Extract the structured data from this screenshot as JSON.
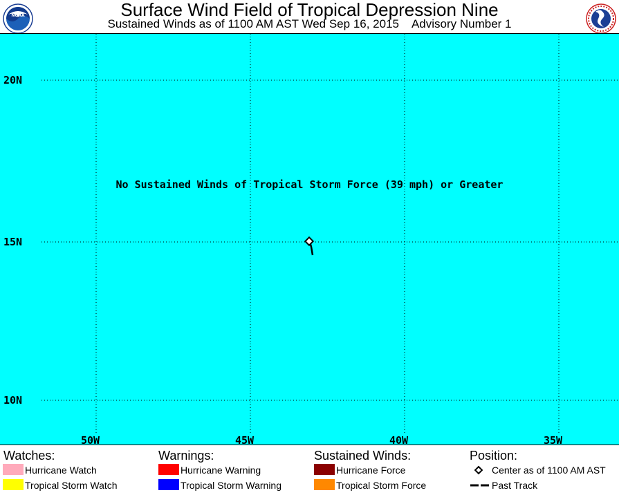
{
  "header": {
    "title": "Surface Wind Field of Tropical Depression Nine",
    "subtitle": "Sustained Winds as of 1100 AM AST Wed Sep 16, 2015    Advisory Number 1",
    "left_logo": "noaa-logo",
    "right_logo": "national-weather-service-logo"
  },
  "map": {
    "background_color": "#00ffff",
    "notice": "No Sustained Winds of Tropical Storm Force (39 mph) or Greater",
    "lat_labels": [
      "20N",
      "15N",
      "10N"
    ],
    "lon_labels": [
      "50W",
      "45W",
      "40W",
      "35W"
    ],
    "center_position": {
      "lat": 15.0,
      "lon": 42.3
    },
    "past_track": [
      {
        "lat": 14.6,
        "lon": 42.2
      },
      {
        "lat": 15.0,
        "lon": 42.3
      }
    ]
  },
  "legend": {
    "watches": {
      "heading": "Watches:",
      "items": [
        {
          "label": "Hurricane Watch",
          "color": "#ffaabb"
        },
        {
          "label": "Tropical Storm Watch",
          "color": "#ffff00"
        }
      ]
    },
    "warnings": {
      "heading": "Warnings:",
      "items": [
        {
          "label": "Hurricane Warning",
          "color": "#ff0000"
        },
        {
          "label": "Tropical Storm Warning",
          "color": "#0000ff"
        }
      ]
    },
    "winds": {
      "heading": "Sustained Winds:",
      "items": [
        {
          "label": "Hurricane Force",
          "color": "#8b0000"
        },
        {
          "label": "Tropical Storm Force",
          "color": "#ff8800"
        }
      ]
    },
    "position": {
      "heading": "Position:",
      "center_label": "Center as of 1100 AM AST",
      "track_label": "Past Track"
    }
  }
}
